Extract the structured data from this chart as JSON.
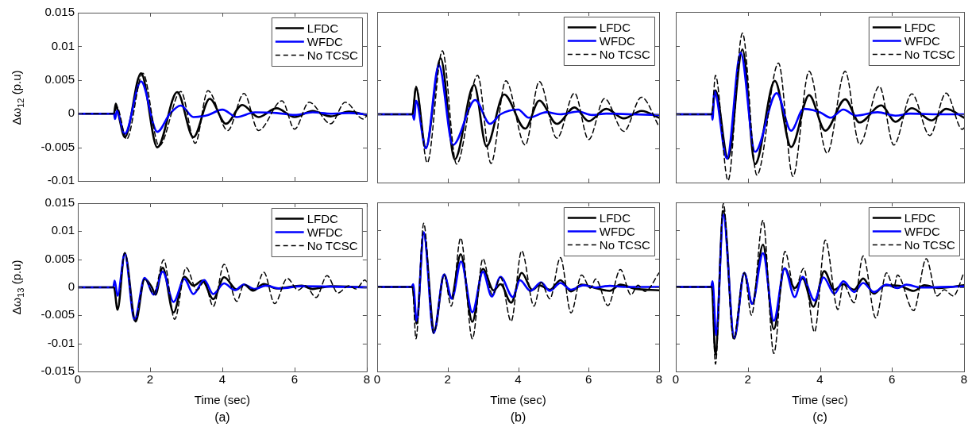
{
  "chart_data": [
    {
      "type": "line",
      "ylabel": "Δω$_{12}$ (p.u)",
      "xlim": [
        0,
        8
      ],
      "xticks": [
        0,
        2,
        4,
        6,
        8
      ],
      "ylim": [
        -0.01,
        0.015
      ],
      "yticks": [
        -0.01,
        -0.005,
        0,
        0.005,
        0.01,
        0.015
      ],
      "tick_labels": "y",
      "legend": "top right",
      "series": [
        {
          "name": "LFDC",
          "color": "#000000",
          "line_style": "solid",
          "x": [
            0,
            1,
            1.05,
            1.12,
            1.3,
            1.75,
            2.2,
            2.75,
            3.2,
            3.65,
            4.1,
            4.55,
            5.0,
            5.5,
            6.0,
            6.5,
            7.0,
            7.5,
            8
          ],
          "values": [
            0,
            0,
            0.0015,
            0,
            -0.0035,
            0.006,
            -0.005,
            0.0032,
            -0.0035,
            0.0022,
            -0.0015,
            0.0013,
            -0.0005,
            0.0008,
            -0.0005,
            0.0004,
            -0.0004,
            0.0003,
            -0.0002
          ]
        },
        {
          "name": "WFDC",
          "color": "#0000ff",
          "line_style": "solid",
          "x": [
            0,
            1,
            1.03,
            1.08,
            1.3,
            1.75,
            2.2,
            2.55,
            2.85,
            3.2,
            3.6,
            4.0,
            4.4,
            4.9,
            5.5,
            6.0,
            6.5,
            7.0,
            7.5,
            8
          ],
          "values": [
            0,
            0,
            -0.0008,
            0.0004,
            -0.003,
            0.0048,
            -0.0027,
            0,
            0.0012,
            -0.0005,
            -0.0002,
            0.0006,
            -0.0005,
            0.0002,
            0.0001,
            -0.0002,
            0.0002,
            0,
            0.0001,
            -0.0001
          ]
        },
        {
          "name": "No TCSC",
          "color": "#000000",
          "line_style": "dashed",
          "x": [
            0,
            1,
            1.08,
            1.35,
            1.8,
            2.25,
            2.85,
            3.25,
            3.6,
            4.15,
            4.6,
            5.0,
            5.65,
            6.0,
            6.4,
            7.0,
            7.4,
            7.9,
            8
          ],
          "values": [
            0,
            0,
            0.001,
            -0.0038,
            0.006,
            -0.0048,
            0.0033,
            -0.0044,
            0.0034,
            -0.0025,
            0.003,
            -0.0025,
            0.0019,
            -0.0023,
            0.0017,
            -0.0015,
            0.0017,
            -0.0008,
            -0.0003
          ]
        }
      ]
    },
    {
      "type": "line",
      "xlim": [
        0,
        8
      ],
      "xticks": [
        0,
        2,
        4,
        6,
        8
      ],
      "ylim": [
        -0.01,
        0.015
      ],
      "yticks": [
        -0.01,
        -0.005,
        0,
        0.005,
        0.01,
        0.015
      ],
      "tick_labels": false,
      "legend": "top right",
      "series": [
        {
          "name": "LFDC",
          "color": "#000000",
          "line_style": "solid",
          "x": [
            0,
            1,
            1.1,
            1.38,
            1.8,
            2.2,
            2.75,
            3.1,
            3.6,
            4.2,
            4.6,
            5.1,
            5.6,
            6.0,
            6.5,
            7.0,
            7.5,
            8
          ],
          "values": [
            0,
            0,
            0.0039,
            -0.0049,
            0.0082,
            -0.0066,
            0.0043,
            -0.0047,
            0.0029,
            -0.0021,
            0.002,
            -0.0014,
            0.001,
            -0.001,
            0.0008,
            -0.0006,
            0.0005,
            -0.0005
          ]
        },
        {
          "name": "WFDC",
          "color": "#0000ff",
          "line_style": "solid",
          "x": [
            0,
            1,
            1.05,
            1.1,
            1.38,
            1.75,
            2.15,
            2.78,
            3.2,
            3.5,
            4.0,
            4.3,
            4.8,
            5.2,
            5.7,
            6.1,
            6.5,
            7.2,
            8
          ],
          "values": [
            0,
            0,
            -0.0008,
            0.002,
            -0.005,
            0.0072,
            -0.0045,
            0.0021,
            -0.0014,
            0,
            0.0007,
            -0.0005,
            0.0003,
            0,
            0.0004,
            -0.0001,
            0.0001,
            0,
            -0.0001
          ]
        },
        {
          "name": "No TCSC",
          "color": "#000000",
          "line_style": "dashed",
          "x": [
            0,
            1,
            1.1,
            1.42,
            1.85,
            2.25,
            2.85,
            3.23,
            3.65,
            4.2,
            4.6,
            5.1,
            5.6,
            6.0,
            6.45,
            7.0,
            7.5,
            8
          ],
          "values": [
            0,
            0,
            0.0041,
            -0.0071,
            0.0093,
            -0.0073,
            0.0057,
            -0.0072,
            0.0049,
            -0.0045,
            0.0048,
            -0.0035,
            0.0031,
            -0.0037,
            0.0023,
            -0.0025,
            0.0025,
            -0.0018
          ]
        }
      ]
    },
    {
      "type": "line",
      "xlim": [
        0,
        8
      ],
      "xticks": [
        0,
        2,
        4,
        6,
        8
      ],
      "ylim": [
        -0.01,
        0.015
      ],
      "yticks": [
        -0.01,
        -0.005,
        0,
        0.005,
        0.01,
        0.015
      ],
      "tick_labels": false,
      "legend": "top right",
      "series": [
        {
          "name": "LFDC",
          "color": "#000000",
          "line_style": "solid",
          "x": [
            0,
            1,
            1.1,
            1.45,
            1.85,
            2.2,
            2.75,
            3.2,
            3.7,
            4.15,
            4.7,
            5.1,
            5.7,
            6.1,
            6.55,
            7.1,
            7.5,
            8
          ],
          "values": [
            0,
            0,
            0.0035,
            -0.0065,
            0.0095,
            -0.0073,
            0.0049,
            -0.0048,
            0.0028,
            -0.0024,
            0.0022,
            -0.0012,
            0.0013,
            -0.0011,
            0.0009,
            -0.0009,
            0.0008,
            -0.0005
          ]
        },
        {
          "name": "WFDC",
          "color": "#0000ff",
          "line_style": "solid",
          "x": [
            0,
            1,
            1.02,
            1.07,
            1.42,
            1.8,
            2.2,
            2.8,
            3.2,
            3.55,
            4.0,
            4.3,
            4.65,
            5.0,
            5.6,
            6.1,
            6.5,
            7.2,
            8
          ],
          "values": [
            0,
            0,
            -0.0008,
            0.0034,
            -0.0065,
            0.009,
            -0.0055,
            0.0031,
            -0.0024,
            0.0008,
            0.0003,
            -0.0005,
            0.0007,
            -0.0002,
            0.0003,
            -0.0002,
            0.0001,
            0,
            0
          ]
        },
        {
          "name": "No TCSC",
          "color": "#000000",
          "line_style": "dashed",
          "x": [
            0,
            1,
            1.1,
            1.45,
            1.85,
            2.25,
            2.85,
            3.25,
            3.7,
            4.2,
            4.7,
            5.1,
            5.65,
            6.05,
            6.55,
            7.05,
            7.5,
            7.95,
            8
          ],
          "values": [
            0,
            0,
            0.0057,
            -0.0097,
            0.0119,
            -0.0089,
            0.0075,
            -0.0091,
            0.0063,
            -0.0057,
            0.0063,
            -0.0044,
            0.0041,
            -0.0045,
            0.003,
            -0.0031,
            0.0031,
            -0.0022,
            -0.002
          ]
        }
      ]
    },
    {
      "type": "line",
      "xlabel": "Time (sec)",
      "ylabel": "Δω$_{13}$ (p.u)",
      "annotations": [
        "(a)"
      ],
      "xlim": [
        0,
        8
      ],
      "xticks": [
        0,
        2,
        4,
        6,
        8
      ],
      "ylim": [
        -0.015,
        0.015
      ],
      "yticks": [
        -0.015,
        -0.01,
        -0.005,
        0,
        0.005,
        0.01,
        0.015
      ],
      "legend": "top right",
      "series": [
        {
          "name": "LFDC",
          "color": "#000000",
          "line_style": "solid",
          "x": [
            0,
            1,
            1.1,
            1.3,
            1.6,
            1.85,
            2.05,
            2.15,
            2.35,
            2.65,
            2.95,
            3.2,
            3.45,
            3.75,
            4.05,
            4.4,
            4.6,
            4.85,
            5.15,
            5.5,
            6.2,
            6.5,
            7.0,
            8
          ],
          "values": [
            0,
            0,
            -0.004,
            0.0061,
            -0.0061,
            0.0015,
            0,
            -0.0013,
            0.0035,
            -0.0045,
            0.0019,
            0.0003,
            0.0012,
            -0.0021,
            0.0018,
            -0.0004,
            0.0005,
            -0.0006,
            0.0006,
            -0.0002,
            0.0003,
            -0.0003,
            0.0002,
            0
          ]
        },
        {
          "name": "WFDC",
          "color": "#0000ff",
          "line_style": "solid",
          "x": [
            0,
            0.98,
            1.02,
            1.1,
            1.3,
            1.57,
            1.85,
            2.1,
            2.35,
            2.65,
            2.95,
            3.2,
            3.5,
            3.75,
            4.05,
            4.35,
            4.6,
            4.9,
            5.2,
            5.6,
            6.2,
            8
          ],
          "values": [
            0,
            0,
            0.0012,
            -0.0015,
            0.006,
            -0.0058,
            0.0017,
            -0.0013,
            0.0028,
            -0.0026,
            0.0015,
            -0.0012,
            0.0013,
            -0.0012,
            0.0007,
            -0.0005,
            0.0005,
            -0.0003,
            0.0003,
            -0.0002,
            0.0002,
            0
          ]
        },
        {
          "name": "No TCSC",
          "color": "#000000",
          "line_style": "dashed",
          "x": [
            0,
            1,
            1.1,
            1.3,
            1.58,
            1.85,
            2.1,
            2.38,
            2.68,
            3.0,
            3.3,
            3.5,
            3.75,
            4.05,
            4.4,
            4.6,
            4.9,
            5.15,
            5.45,
            5.8,
            6.1,
            6.3,
            6.6,
            6.9,
            7.2,
            7.5,
            7.7,
            7.95,
            8
          ],
          "values": [
            0,
            0,
            -0.0038,
            0.0062,
            -0.006,
            0.0015,
            -0.0012,
            0.0049,
            -0.0057,
            0.0035,
            -0.0005,
            0.001,
            -0.0034,
            0.0041,
            -0.0025,
            0.0005,
            -0.0005,
            0.0027,
            -0.0029,
            0.0016,
            -0.0005,
            0.0003,
            -0.0018,
            0.0021,
            -0.001,
            0.0003,
            -0.0003,
            0.0013,
            0.001
          ]
        }
      ]
    },
    {
      "type": "line",
      "xlabel": "Time (sec)",
      "annotations": [
        "(b)"
      ],
      "xlim": [
        0,
        8
      ],
      "xticks": [
        0,
        2,
        4,
        6,
        8
      ],
      "ylim": [
        -0.015,
        0.015
      ],
      "yticks": [
        -0.015,
        -0.01,
        -0.005,
        0,
        0.005,
        0.01,
        0.015
      ],
      "tick_labels": "x",
      "legend": "top right",
      "series": [
        {
          "name": "LFDC",
          "color": "#000000",
          "line_style": "solid",
          "x": [
            0,
            1,
            1.12,
            1.32,
            1.62,
            1.9,
            2.1,
            2.37,
            2.7,
            3.0,
            3.3,
            3.5,
            3.8,
            4.1,
            4.4,
            4.6,
            4.9,
            5.2,
            5.5,
            5.8,
            6.2,
            6.6,
            6.9,
            7.3,
            8
          ],
          "values": [
            0,
            0,
            -0.0065,
            0.0095,
            -0.0078,
            0.0022,
            -0.002,
            0.0058,
            -0.0062,
            0.0032,
            -0.0006,
            0.0005,
            -0.0028,
            0.0025,
            -0.0005,
            0.0003,
            -0.0005,
            0.0012,
            -0.0008,
            0.0004,
            -0.0002,
            -0.0007,
            0.0004,
            -0.0003,
            -0.0006
          ]
        },
        {
          "name": "WFDC",
          "color": "#0000ff",
          "line_style": "solid",
          "x": [
            0,
            0.98,
            1.02,
            1.12,
            1.32,
            1.6,
            1.9,
            2.12,
            2.38,
            2.7,
            3.0,
            3.25,
            3.5,
            3.85,
            4.05,
            4.35,
            4.65,
            4.9,
            5.2,
            5.5,
            5.85,
            6.2,
            6.6,
            7.0,
            8
          ],
          "values": [
            0,
            0,
            0.0005,
            -0.006,
            0.0097,
            -0.0082,
            0.0022,
            -0.0021,
            0.0045,
            -0.0045,
            0.0027,
            -0.0017,
            0.0018,
            -0.0018,
            0.0012,
            -0.0007,
            0.0008,
            -0.0007,
            0.0007,
            -0.0005,
            0.0003,
            -0.0001,
            0.0002,
            0,
            0
          ]
        },
        {
          "name": "No TCSC",
          "color": "#000000",
          "line_style": "dashed",
          "x": [
            0,
            1,
            1.1,
            1.32,
            1.6,
            1.9,
            2.1,
            2.37,
            2.7,
            3.0,
            3.27,
            3.5,
            3.8,
            4.1,
            4.45,
            4.65,
            4.9,
            5.2,
            5.5,
            5.8,
            6.05,
            6.2,
            6.55,
            6.9,
            7.2,
            7.4,
            7.6,
            8
          ],
          "values": [
            0,
            0,
            -0.0092,
            0.0113,
            -0.0082,
            0.0021,
            -0.0034,
            0.0087,
            -0.0092,
            0.005,
            -0.0014,
            0.0017,
            -0.0061,
            0.0064,
            -0.0034,
            0.0008,
            -0.0021,
            0.0052,
            -0.0046,
            0.0021,
            -0.0002,
            0.0014,
            -0.0033,
            0.0031,
            -0.0014,
            0.0003,
            -0.0008,
            0.0025
          ]
        }
      ]
    },
    {
      "type": "line",
      "xlabel": "Time (sec)",
      "annotations": [
        "(c)"
      ],
      "xlim": [
        0,
        8
      ],
      "xticks": [
        0,
        2,
        4,
        6,
        8
      ],
      "ylim": [
        -0.015,
        0.015
      ],
      "yticks": [
        -0.015,
        -0.01,
        -0.005,
        0,
        0.005,
        0.01,
        0.015
      ],
      "tick_labels": "x",
      "legend": "top right",
      "series": [
        {
          "name": "LFDC",
          "color": "#000000",
          "line_style": "solid",
          "x": [
            0,
            1,
            1.1,
            1.32,
            1.62,
            1.9,
            2.12,
            2.42,
            2.72,
            3.02,
            3.3,
            3.52,
            3.82,
            4.12,
            4.4,
            4.65,
            4.95,
            5.2,
            5.5,
            5.8,
            6.2,
            6.6,
            6.9,
            7.3,
            8
          ],
          "values": [
            0,
            0,
            -0.012,
            0.0135,
            -0.0092,
            0.0025,
            -0.003,
            0.0075,
            -0.0075,
            0.0033,
            -0.0002,
            0.0015,
            -0.0035,
            0.0028,
            -0.0005,
            0.0005,
            -0.0005,
            0.0015,
            -0.0012,
            0.0003,
            0.0002,
            -0.0007,
            0.0003,
            -0.0002,
            0.0003
          ]
        },
        {
          "name": "WFDC",
          "color": "#0000ff",
          "line_style": "solid",
          "x": [
            0,
            0.98,
            1.02,
            1.12,
            1.32,
            1.62,
            1.9,
            2.12,
            2.42,
            2.72,
            3.02,
            3.3,
            3.52,
            3.85,
            4.1,
            4.4,
            4.65,
            4.95,
            5.2,
            5.5,
            5.85,
            6.15,
            6.4,
            6.8,
            8
          ],
          "values": [
            0,
            0,
            0.001,
            -0.0085,
            0.0128,
            -0.009,
            0.0025,
            -0.003,
            0.006,
            -0.006,
            0.0033,
            -0.0018,
            0.0018,
            -0.0024,
            0.0017,
            -0.0012,
            0.001,
            -0.0009,
            0.0007,
            -0.0009,
            0.0004,
            -0.0002,
            0.0004,
            -0.0001,
            0.0001
          ]
        },
        {
          "name": "No TCSC",
          "color": "#000000",
          "line_style": "dashed",
          "x": [
            0,
            1,
            1.1,
            1.32,
            1.6,
            1.9,
            2.1,
            2.42,
            2.72,
            3.03,
            3.3,
            3.55,
            3.85,
            4.15,
            4.5,
            4.65,
            4.95,
            5.2,
            5.55,
            5.85,
            6.05,
            6.15,
            6.6,
            6.95,
            7.25,
            7.45,
            7.7,
            8
          ],
          "values": [
            0,
            0,
            -0.0137,
            0.0148,
            -0.0092,
            0.0025,
            -0.005,
            0.0118,
            -0.0118,
            0.0063,
            -0.0006,
            0.0033,
            -0.008,
            0.0083,
            -0.004,
            0.0005,
            -0.0028,
            0.0055,
            -0.0055,
            0.0025,
            -0.0001,
            0.0021,
            -0.0042,
            0.005,
            -0.0016,
            -0.0005,
            -0.0016,
            0.0026
          ]
        }
      ]
    }
  ]
}
